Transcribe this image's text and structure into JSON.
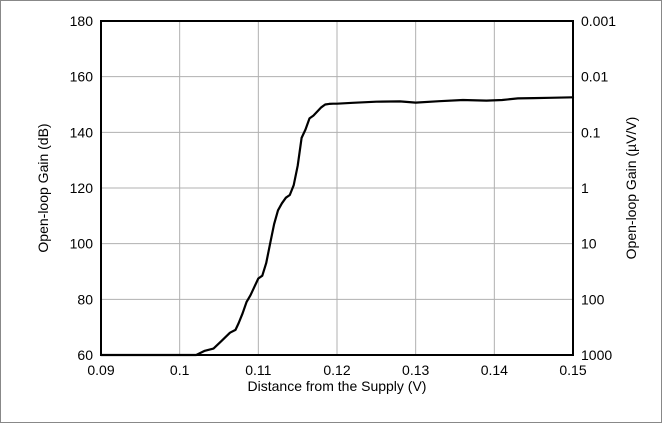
{
  "chart_data": {
    "type": "line",
    "title": "",
    "xlabel": "Distance from the Supply (V)",
    "ylabel": "Open-loop Gain (dB)",
    "y2label": "Open-loop Gain (µV/V)",
    "xlim": [
      0.09,
      0.15
    ],
    "ylim": [
      60,
      180
    ],
    "x_ticks": [
      "0.09",
      "0.1",
      "0.11",
      "0.12",
      "0.13",
      "0.14",
      "0.15"
    ],
    "y_ticks": [
      "60",
      "80",
      "100",
      "120",
      "140",
      "160",
      "180"
    ],
    "y2_ticks": [
      "1000",
      "100",
      "10",
      "1",
      "0.1",
      "0.01",
      "0.001"
    ],
    "grid": true,
    "line_color": "#000000",
    "grid_color": "#b0b0b0",
    "series": [
      {
        "x": [
          0.09,
          0.1,
          0.1021,
          0.1032,
          0.1043,
          0.1053,
          0.1064,
          0.1071,
          0.1075,
          0.108,
          0.1085,
          0.109,
          0.1095,
          0.11,
          0.1105,
          0.111,
          0.1115,
          0.112,
          0.1125,
          0.113,
          0.1135,
          0.114,
          0.1145,
          0.115,
          0.1155,
          0.116,
          0.1165,
          0.117,
          0.1175,
          0.118,
          0.1185,
          0.119,
          0.1195,
          0.12,
          0.122,
          0.125,
          0.128,
          0.13,
          0.133,
          0.136,
          0.139,
          0.141,
          0.143,
          0.145,
          0.147,
          0.15
        ],
        "y": [
          60,
          60,
          60,
          61.5,
          62.3,
          65,
          68,
          69,
          71.5,
          75,
          79,
          81.5,
          84.5,
          87.5,
          88.5,
          93,
          100,
          107,
          112,
          114.5,
          116.5,
          117.5,
          121,
          128,
          138,
          141,
          145,
          146,
          147.5,
          149,
          150,
          150.2,
          150.3,
          150.3,
          150.6,
          151,
          151.1,
          150.7,
          151.2,
          151.6,
          151.4,
          151.6,
          152.2,
          152.3,
          152.4,
          152.6
        ]
      }
    ]
  }
}
